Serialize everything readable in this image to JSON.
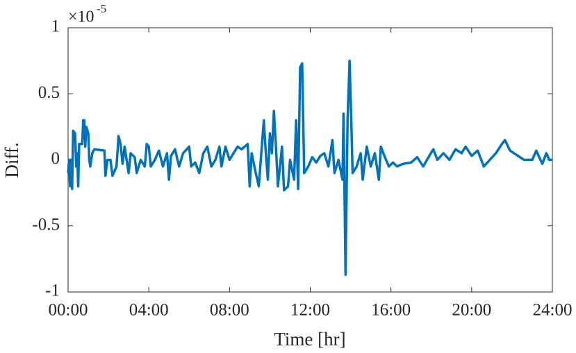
{
  "chart_data": {
    "type": "line",
    "xlabel": "Time [hr]",
    "ylabel": "Diff.",
    "y_multiplier": {
      "base": "×10",
      "exponent": "-5"
    },
    "xlim": [
      0,
      24
    ],
    "ylim": [
      -1,
      1
    ],
    "xticks": [
      {
        "value": 0,
        "label": "00:00"
      },
      {
        "value": 4,
        "label": "04:00"
      },
      {
        "value": 8,
        "label": "08:00"
      },
      {
        "value": 12,
        "label": "12:00"
      },
      {
        "value": 16,
        "label": "16:00"
      },
      {
        "value": 20,
        "label": "20:00"
      },
      {
        "value": 24,
        "label": "24:00"
      }
    ],
    "yticks": [
      -1,
      -0.5,
      0,
      0.5,
      1
    ],
    "series": [
      {
        "color": "#0072bd",
        "x": [
          0.0,
          0.05,
          0.1,
          0.15,
          0.2,
          0.25,
          0.35,
          0.4,
          0.45,
          0.5,
          0.55,
          0.7,
          0.75,
          0.8,
          0.85,
          0.9,
          1.0,
          1.05,
          1.1,
          1.2,
          1.3,
          1.8,
          1.85,
          1.95,
          2.1,
          2.2,
          2.4,
          2.5,
          2.6,
          2.7,
          2.8,
          3.0,
          3.1,
          3.3,
          3.4,
          3.6,
          3.8,
          3.9,
          4.0,
          4.1,
          4.3,
          4.5,
          4.7,
          4.9,
          5.0,
          5.1,
          5.3,
          5.5,
          5.7,
          6.0,
          6.1,
          6.3,
          6.5,
          6.7,
          6.9,
          7.1,
          7.3,
          7.5,
          7.6,
          7.8,
          8.0,
          8.2,
          8.4,
          8.6,
          8.9,
          9.0,
          9.1,
          9.3,
          9.45,
          9.6,
          9.7,
          9.8,
          9.9,
          10.0,
          10.1,
          10.2,
          10.3,
          10.4,
          10.6,
          10.7,
          10.9,
          11.0,
          11.2,
          11.3,
          11.4,
          11.5,
          11.6,
          11.7,
          11.9,
          12.1,
          12.3,
          12.5,
          12.7,
          12.9,
          13.1,
          13.2,
          13.4,
          13.6,
          13.65,
          13.75,
          13.85,
          13.95,
          14.05,
          14.1,
          14.3,
          14.5,
          14.6,
          14.8,
          15.0,
          15.2,
          15.4,
          15.5,
          15.7,
          15.9,
          16.1,
          16.3,
          16.6,
          17.0,
          17.3,
          17.6,
          17.9,
          18.1,
          18.3,
          18.6,
          18.9,
          19.2,
          19.5,
          19.7,
          20.0,
          20.3,
          20.6,
          20.9,
          21.2,
          21.5,
          21.65,
          21.9,
          22.3,
          22.6,
          23.0,
          23.2,
          23.5,
          23.7,
          23.85,
          24.0
        ],
        "values": [
          -0.1,
          0.0,
          -0.2,
          0.0,
          -0.22,
          0.22,
          0.2,
          -0.05,
          0.05,
          -0.2,
          0.12,
          0.12,
          0.3,
          0.3,
          0.1,
          0.25,
          0.2,
          0.0,
          -0.05,
          0.05,
          0.08,
          0.07,
          -0.12,
          0.0,
          0.0,
          -0.12,
          -0.05,
          0.18,
          0.12,
          -0.03,
          0.1,
          -0.1,
          0.05,
          0.02,
          -0.1,
          0.0,
          -0.05,
          0.12,
          0.1,
          -0.05,
          0.0,
          0.07,
          -0.05,
          0.05,
          -0.15,
          0.03,
          0.08,
          -0.05,
          0.05,
          0.1,
          -0.05,
          -0.02,
          -0.1,
          0.05,
          0.1,
          -0.05,
          0.0,
          0.1,
          -0.05,
          0.1,
          0.0,
          0.05,
          0.1,
          0.08,
          0.12,
          -0.2,
          0.05,
          -0.1,
          -0.2,
          0.1,
          0.3,
          0.05,
          -0.15,
          0.2,
          0.05,
          0.37,
          0.1,
          -0.2,
          0.1,
          -0.23,
          -0.2,
          0.0,
          -0.15,
          0.3,
          -0.22,
          0.7,
          0.73,
          -0.1,
          -0.05,
          0.02,
          -0.02,
          0.03,
          0.05,
          -0.05,
          0.15,
          -0.1,
          0.0,
          -0.15,
          0.35,
          -0.87,
          0.3,
          0.75,
          0.2,
          -0.1,
          -0.05,
          0.05,
          -0.15,
          0.1,
          -0.05,
          0.05,
          -0.15,
          0.1,
          0.02,
          -0.05,
          -0.02,
          -0.05,
          -0.03,
          -0.02,
          0.02,
          -0.05,
          0.03,
          0.08,
          0.0,
          0.05,
          0.0,
          0.08,
          0.05,
          0.1,
          0.03,
          0.07,
          -0.05,
          0.0,
          0.05,
          0.12,
          0.15,
          0.07,
          0.03,
          0.0,
          0.0,
          0.07,
          -0.03,
          0.05,
          0.0,
          0.0
        ]
      }
    ]
  }
}
